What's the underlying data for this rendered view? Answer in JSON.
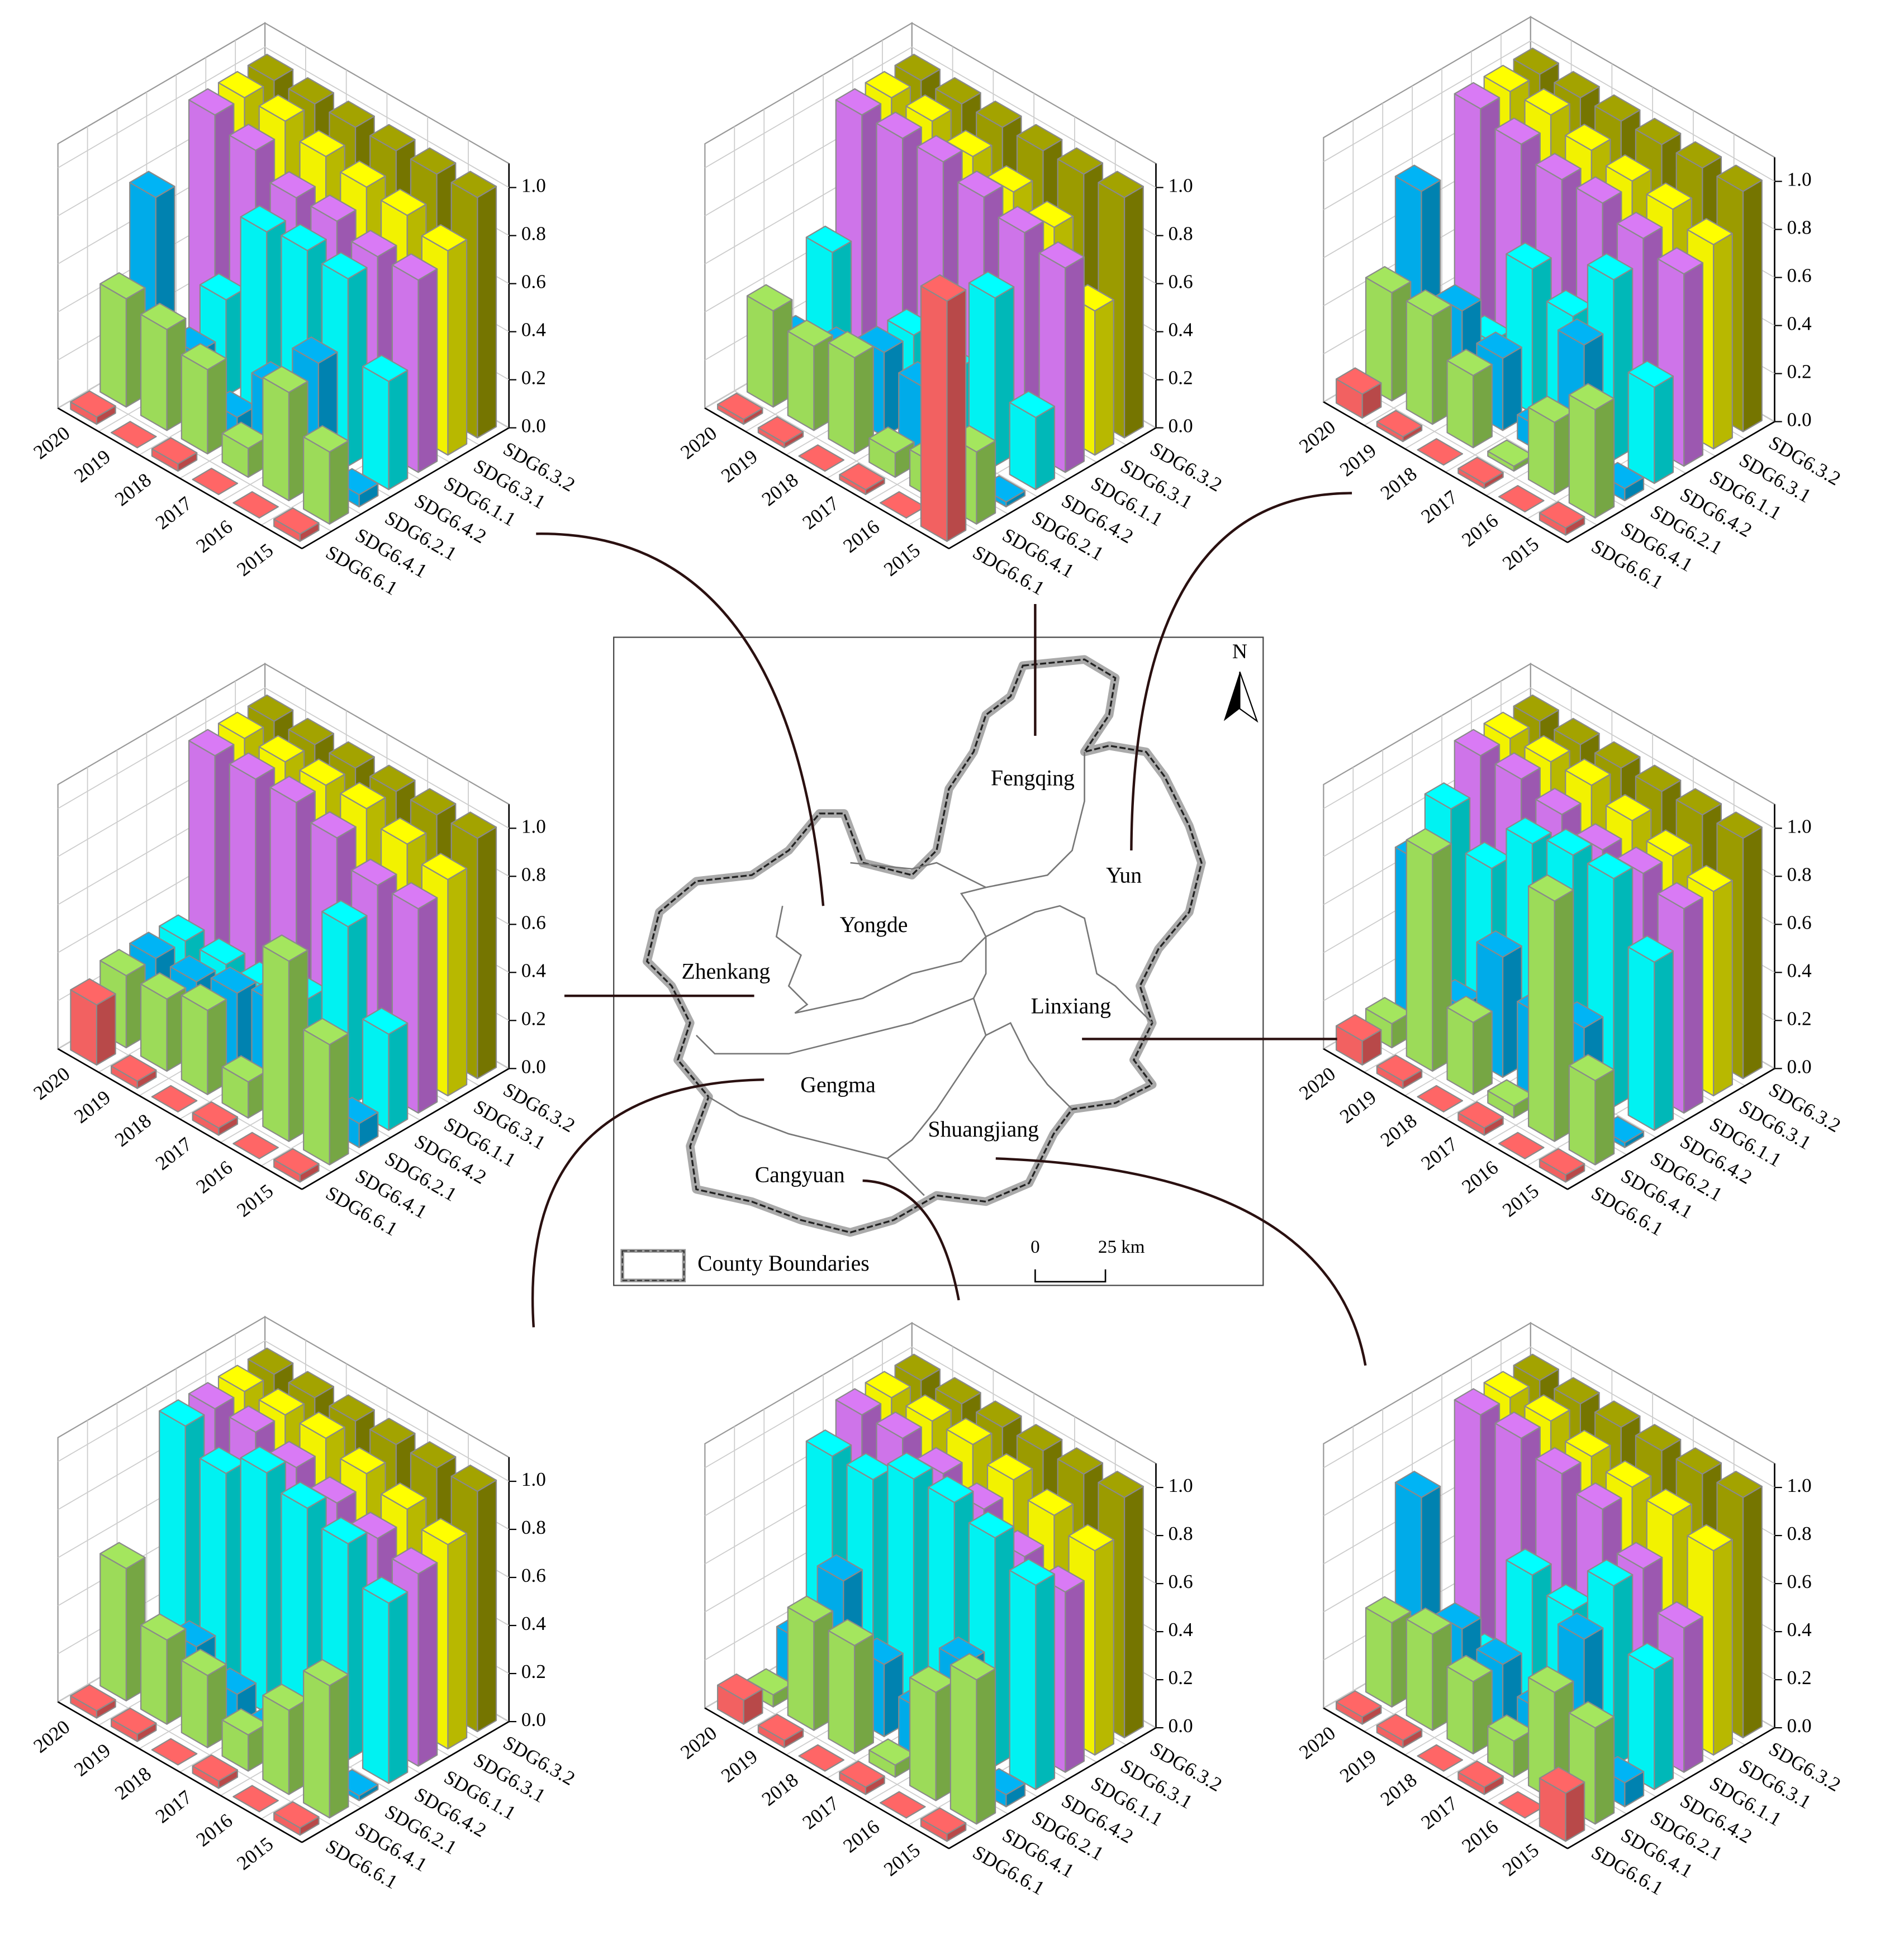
{
  "chart_data": [
    {
      "type": "bar3d",
      "categories": [
        "2015",
        "2016",
        "2017",
        "2018",
        "2019",
        "2020"
      ],
      "zlim": [
        0,
        1.1
      ],
      "zticks": [
        {
          "value": 0,
          "label": "0.0"
        },
        0.2,
        0.4,
        0.6,
        0.8,
        {
          "value": 1,
          "label": "1.0"
        }
      ],
      "series": [
        {
          "name": "SDG6.6.1",
          "color": "#ff6666",
          "values": [
            0.03,
            0,
            0,
            0.03,
            0,
            0.03
          ]
        },
        {
          "name": "SDG6.4.1",
          "color": "#a4e65e",
          "values": [
            0.3,
            0.45,
            0.12,
            0.35,
            0.42,
            0.45
          ]
        },
        {
          "name": "SDG6.2.1",
          "color": "#00b4f5",
          "values": [
            0.05,
            0.5,
            0.3,
            0.08,
            0.25,
            0.8
          ]
        },
        {
          "name": "SDG6.4.2",
          "color": "#00ffff",
          "values": [
            0.45,
            0.78,
            0.8,
            0.78,
            0.4,
            0.05
          ]
        },
        {
          "name": "SDG6.1.1",
          "color": "#d97af5",
          "values": [
            0.8,
            0.8,
            0.85,
            0.85,
            0.95,
            1.0
          ]
        },
        {
          "name": "SDG6.3.1",
          "color": "#ffff00",
          "values": [
            0.85,
            0.9,
            0.92,
            0.95,
            1.0,
            1.0
          ]
        },
        {
          "name": "SDG6.3.2",
          "color": "#a3a300",
          "values": [
            1,
            1,
            1,
            1,
            1,
            1
          ]
        }
      ]
    },
    {
      "type": "bar3d",
      "categories": [
        "2015",
        "2016",
        "2017",
        "2018",
        "2019",
        "2020"
      ],
      "zlim": [
        0,
        1.1
      ],
      "zticks": [
        {
          "value": 0,
          "label": "0.0"
        },
        0.2,
        0.4,
        0.6,
        0.8,
        {
          "value": 1,
          "label": "1.0"
        }
      ],
      "series": [
        {
          "name": "SDG6.6.1",
          "color": "#ff6666",
          "values": [
            1.0,
            0,
            0.02,
            0,
            0.02,
            0.02
          ]
        },
        {
          "name": "SDG6.4.1",
          "color": "#a4e65e",
          "values": [
            0.3,
            0.15,
            0.1,
            0.4,
            0.35,
            0.4
          ]
        },
        {
          "name": "SDG6.2.1",
          "color": "#00b4f5",
          "values": [
            0.02,
            0.05,
            0.3,
            0.35,
            0.25,
            0.2
          ]
        },
        {
          "name": "SDG6.4.2",
          "color": "#00ffff",
          "values": [
            0.3,
            0.7,
            0.3,
            0.35,
            0.1,
            0.5
          ]
        },
        {
          "name": "SDG6.1.1",
          "color": "#d97af5",
          "values": [
            0.85,
            0.9,
            0.95,
            1.0,
            1.0,
            1.0
          ]
        },
        {
          "name": "SDG6.3.1",
          "color": "#ffff00",
          "values": [
            0.6,
            0.85,
            0.9,
            0.95,
            1.0,
            1.0
          ]
        },
        {
          "name": "SDG6.3.2",
          "color": "#a3a300",
          "values": [
            1,
            1,
            1,
            1,
            1,
            1
          ]
        }
      ]
    },
    {
      "type": "bar3d",
      "categories": [
        "2015",
        "2016",
        "2017",
        "2018",
        "2019",
        "2020"
      ],
      "zlim": [
        0,
        1.1
      ],
      "zticks": [
        {
          "value": 0,
          "label": "0.0"
        },
        0.2,
        0.4,
        0.6,
        0.8,
        {
          "value": 1,
          "label": "1.0"
        }
      ],
      "series": [
        {
          "name": "SDG6.6.1",
          "color": "#ff6666",
          "values": [
            0.03,
            0,
            0.02,
            0,
            0.02,
            0.1
          ]
        },
        {
          "name": "SDG6.4.1",
          "color": "#a4e65e",
          "values": [
            0.45,
            0.3,
            0.02,
            0.3,
            0.45,
            0.45
          ]
        },
        {
          "name": "SDG6.2.1",
          "color": "#00b4f5",
          "values": [
            0.05,
            0.55,
            0.1,
            0.3,
            0.4,
            0.8
          ]
        },
        {
          "name": "SDG6.4.2",
          "color": "#00ffff",
          "values": [
            0.4,
            0.75,
            0.5,
            0.6,
            0.2,
            0.05
          ]
        },
        {
          "name": "SDG6.1.1",
          "color": "#d97af5",
          "values": [
            0.8,
            0.85,
            0.9,
            0.9,
            0.95,
            1.0
          ]
        },
        {
          "name": "SDG6.3.1",
          "color": "#ffff00",
          "values": [
            0.85,
            0.9,
            0.92,
            0.95,
            1.0,
            1.0
          ]
        },
        {
          "name": "SDG6.3.2",
          "color": "#a3a300",
          "values": [
            1,
            1,
            1,
            1,
            1,
            1
          ]
        }
      ]
    },
    {
      "type": "bar3d",
      "categories": [
        "2015",
        "2016",
        "2017",
        "2018",
        "2019",
        "2020"
      ],
      "zlim": [
        0,
        1.1
      ],
      "zticks": [
        {
          "value": 0,
          "label": "0.0"
        },
        0.2,
        0.4,
        0.6,
        0.8,
        {
          "value": 1,
          "label": "1.0"
        }
      ],
      "series": [
        {
          "name": "SDG6.6.1",
          "color": "#ff6666",
          "values": [
            0.03,
            0,
            0.03,
            0,
            0.03,
            0.25
          ]
        },
        {
          "name": "SDG6.4.1",
          "color": "#a4e65e",
          "values": [
            0.5,
            0.75,
            0.15,
            0.35,
            0.3,
            0.3
          ]
        },
        {
          "name": "SDG6.2.1",
          "color": "#00b4f5",
          "values": [
            0.1,
            0.2,
            0.4,
            0.35,
            0.3,
            0.3
          ]
        },
        {
          "name": "SDG6.4.2",
          "color": "#00ffff",
          "values": [
            0.4,
            0.75,
            0.35,
            0.3,
            0.3,
            0.3
          ]
        },
        {
          "name": "SDG6.1.1",
          "color": "#d97af5",
          "values": [
            0.85,
            0.85,
            0.95,
            1.0,
            1.0,
            1.0
          ]
        },
        {
          "name": "SDG6.3.1",
          "color": "#ffff00",
          "values": [
            0.9,
            0.95,
            1.0,
            1.0,
            1.0,
            1.0
          ]
        },
        {
          "name": "SDG6.3.2",
          "color": "#a3a300",
          "values": [
            1,
            1,
            1,
            1,
            1,
            1
          ]
        }
      ]
    },
    {
      "type": "bar3d",
      "categories": [
        "2015",
        "2016",
        "2017",
        "2018",
        "2019",
        "2020"
      ],
      "zlim": [
        0,
        1.1
      ],
      "zticks": [
        {
          "value": 0,
          "label": "0.0"
        },
        0.2,
        0.4,
        0.6,
        0.8,
        {
          "value": 1,
          "label": "1.0"
        }
      ],
      "series": [
        {
          "name": "SDG6.6.1",
          "color": "#ff6666",
          "values": [
            0.03,
            0,
            0.03,
            0,
            0.03,
            0.1
          ]
        },
        {
          "name": "SDG6.4.1",
          "color": "#a4e65e",
          "values": [
            0.35,
            1.0,
            0.05,
            0.3,
            0.9,
            0.1
          ]
        },
        {
          "name": "SDG6.2.1",
          "color": "#00b4f5",
          "values": [
            0.02,
            0.4,
            0.35,
            0.5,
            0.2,
            0.7
          ]
        },
        {
          "name": "SDG6.4.2",
          "color": "#00ffff",
          "values": [
            0.7,
            0.95,
            0.95,
            0.9,
            0.7,
            0.85
          ]
        },
        {
          "name": "SDG6.1.1",
          "color": "#d97af5",
          "values": [
            0.85,
            0.9,
            0.9,
            0.95,
            1.0,
            1.0
          ]
        },
        {
          "name": "SDG6.3.1",
          "color": "#ffff00",
          "values": [
            0.85,
            0.9,
            0.95,
            1.0,
            1.0,
            1.0
          ]
        },
        {
          "name": "SDG6.3.2",
          "color": "#a3a300",
          "values": [
            1,
            1,
            1,
            1,
            1,
            1
          ]
        }
      ]
    },
    {
      "type": "bar3d",
      "categories": [
        "2015",
        "2016",
        "2017",
        "2018",
        "2019",
        "2020"
      ],
      "zlim": [
        0,
        1.1
      ],
      "zticks": [
        {
          "value": 0,
          "label": "0.0"
        },
        0.2,
        0.4,
        0.6,
        0.8,
        {
          "value": 1,
          "label": "1.0"
        }
      ],
      "series": [
        {
          "name": "SDG6.6.1",
          "color": "#ff6666",
          "values": [
            0.03,
            0,
            0.03,
            0,
            0.03,
            0.03
          ]
        },
        {
          "name": "SDG6.4.1",
          "color": "#a4e65e",
          "values": [
            0.55,
            0.35,
            0.15,
            0.3,
            0.35,
            0.55
          ]
        },
        {
          "name": "SDG6.2.1",
          "color": "#00b4f5",
          "values": [
            0.02,
            0.05,
            0.1,
            0.15,
            0.25,
            0.1
          ]
        },
        {
          "name": "SDG6.4.2",
          "color": "#00ffff",
          "values": [
            0.75,
            0.9,
            0.95,
            1.0,
            0.9,
            1.0
          ]
        },
        {
          "name": "SDG6.1.1",
          "color": "#d97af5",
          "values": [
            0.8,
            0.85,
            0.9,
            0.95,
            1.0,
            1.0
          ]
        },
        {
          "name": "SDG6.3.1",
          "color": "#ffff00",
          "values": [
            0.85,
            0.9,
            0.95,
            1.0,
            1.0,
            1.0
          ]
        },
        {
          "name": "SDG6.3.2",
          "color": "#a3a300",
          "values": [
            1,
            1,
            1,
            1,
            1,
            1
          ]
        }
      ]
    },
    {
      "type": "bar3d",
      "categories": [
        "2015",
        "2016",
        "2017",
        "2018",
        "2019",
        "2020"
      ],
      "zlim": [
        0,
        1.1
      ],
      "zticks": [
        {
          "value": 0,
          "label": "0.0"
        },
        0.2,
        0.4,
        0.6,
        0.8,
        {
          "value": 1,
          "label": "1.0"
        }
      ],
      "series": [
        {
          "name": "SDG6.6.1",
          "color": "#ff6666",
          "values": [
            0.03,
            0,
            0.03,
            0,
            0.03,
            0.1
          ]
        },
        {
          "name": "SDG6.4.1",
          "color": "#a4e65e",
          "values": [
            0.6,
            0.45,
            0.05,
            0.45,
            0.45,
            0.05
          ]
        },
        {
          "name": "SDG6.2.1",
          "color": "#00b4f5",
          "values": [
            0.05,
            0.5,
            0.2,
            0.3,
            0.55,
            0.2
          ]
        },
        {
          "name": "SDG6.4.2",
          "color": "#00ffff",
          "values": [
            0.85,
            0.95,
            1.0,
            1.0,
            0.9,
            0.9
          ]
        },
        {
          "name": "SDG6.1.1",
          "color": "#d97af5",
          "values": [
            0.75,
            0.8,
            0.9,
            0.95,
            1.0,
            1.0
          ]
        },
        {
          "name": "SDG6.3.1",
          "color": "#ffff00",
          "values": [
            0.85,
            0.9,
            0.95,
            1.0,
            1.0,
            1.0
          ]
        },
        {
          "name": "SDG6.3.2",
          "color": "#a3a300",
          "values": [
            1,
            1,
            1,
            1,
            1,
            1
          ]
        }
      ]
    },
    {
      "type": "bar3d",
      "categories": [
        "2015",
        "2016",
        "2017",
        "2018",
        "2019",
        "2020"
      ],
      "zlim": [
        0,
        1.1
      ],
      "zticks": [
        {
          "value": 0,
          "label": "0.0"
        },
        0.2,
        0.4,
        0.6,
        0.8,
        {
          "value": 1,
          "label": "1.0"
        }
      ],
      "series": [
        {
          "name": "SDG6.6.1",
          "color": "#ff6666",
          "values": [
            0.2,
            0,
            0.03,
            0,
            0.03,
            0.03
          ]
        },
        {
          "name": "SDG6.4.1",
          "color": "#a4e65e",
          "values": [
            0.4,
            0.45,
            0.15,
            0.3,
            0.4,
            0.35
          ]
        },
        {
          "name": "SDG6.2.1",
          "color": "#00b4f5",
          "values": [
            0.1,
            0.6,
            0.2,
            0.3,
            0.35,
            0.8
          ]
        },
        {
          "name": "SDG6.4.2",
          "color": "#00ffff",
          "values": [
            0.5,
            0.75,
            0.55,
            0.6,
            0.15,
            0.05
          ]
        },
        {
          "name": "SDG6.1.1",
          "color": "#d97af5",
          "values": [
            0.6,
            0.75,
            0.9,
            0.95,
            1.0,
            1.0
          ]
        },
        {
          "name": "SDG6.3.1",
          "color": "#ffff00",
          "values": [
            0.85,
            0.9,
            0.92,
            0.95,
            1.0,
            1.0
          ]
        },
        {
          "name": "SDG6.3.2",
          "color": "#a3a300",
          "values": [
            1,
            1,
            1,
            1,
            1,
            1
          ]
        }
      ]
    }
  ],
  "map": {
    "north": "N",
    "counties": [
      "Fengqing",
      "Yun",
      "Yongde",
      "Zhenkang",
      "Linxiang",
      "Gengma",
      "Shuangjiang",
      "Cangyuan"
    ],
    "legend": "County Boundaries",
    "scale_labels": [
      "0",
      "25 km"
    ]
  }
}
